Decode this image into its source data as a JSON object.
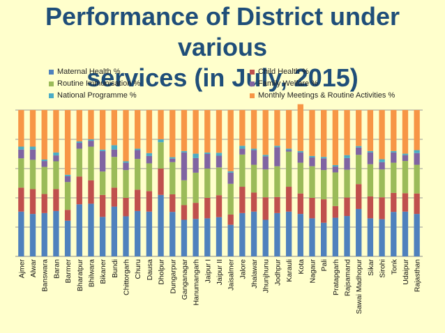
{
  "chart_data": {
    "type": "bar",
    "stacked": true,
    "title": "Performance of District under various services (in July, 2015)",
    "title_lines": [
      "Performance of District under various",
      "services (in July, 2015)"
    ],
    "xlabel": "",
    "ylabel": "",
    "ylim": [
      0,
      500
    ],
    "grid": true,
    "legend_position": "top",
    "categories": [
      "Ajmer",
      "Alwar",
      "Banswara",
      "Baran",
      "Barmer",
      "Bharatpur",
      "Bhilwara",
      "Bikaner",
      "Bundi",
      "Chittorgarh",
      "Churu",
      "Dausa",
      "Dholpur",
      "Dungarpur",
      "Ganganagar",
      "Hanumangarh",
      "Jaipur I",
      "Jaipur II",
      "Jaisalmer",
      "Jalore",
      "Jhalawar",
      "Jhunjhunu",
      "Jodhpur",
      "Karauli",
      "Kota",
      "Nagaur",
      "Pali",
      "Pratapgarh",
      "Rajsamand",
      "Sawai Madhopur",
      "Sikar",
      "Sirohi",
      "Tonk",
      "Udaipur",
      "Rajasthan"
    ],
    "series": [
      {
        "name": "Maternal Health %",
        "color": "#4f81bd",
        "values": [
          153,
          145,
          148,
          155,
          122,
          178,
          180,
          135,
          170,
          137,
          155,
          153,
          210,
          152,
          125,
          128,
          130,
          134,
          108,
          148,
          153,
          125,
          148,
          153,
          145,
          130,
          115,
          132,
          138,
          162,
          130,
          127,
          152,
          153,
          145
        ]
      },
      {
        "name": "Child Health %",
        "color": "#c0504d",
        "values": [
          82,
          85,
          65,
          75,
          37,
          95,
          80,
          75,
          65,
          63,
          73,
          70,
          90,
          60,
          50,
          55,
          70,
          75,
          35,
          90,
          65,
          77,
          55,
          85,
          70,
          70,
          80,
          40,
          63,
          85,
          75,
          75,
          65,
          63,
          70
        ]
      },
      {
        "name": "Routine Immunisation %",
        "color": "#9bbb59",
        "values": [
          100,
          100,
          93,
          95,
          95,
          95,
          115,
          80,
          105,
          95,
          105,
          95,
          90,
          110,
          85,
          103,
          100,
          95,
          105,
          110,
          95,
          95,
          105,
          120,
          105,
          108,
          100,
          115,
          95,
          100,
          110,
          95,
          103,
          110,
          98
        ]
      },
      {
        "name": "Family Welfare %",
        "color": "#8064a2",
        "values": [
          30,
          35,
          20,
          20,
          20,
          20,
          20,
          70,
          25,
          25,
          30,
          25,
          0,
          12,
          95,
          50,
          50,
          40,
          38,
          20,
          50,
          45,
          65,
          5,
          35,
          30,
          40,
          20,
          40,
          25,
          40,
          25,
          35,
          20,
          40
        ]
      },
      {
        "name": "National Programme %",
        "color": "#4bacc6",
        "values": [
          10,
          10,
          5,
          10,
          5,
          5,
          5,
          5,
          15,
          5,
          5,
          10,
          10,
          5,
          5,
          15,
          5,
          10,
          5,
          10,
          5,
          5,
          5,
          5,
          5,
          5,
          5,
          5,
          10,
          5,
          5,
          10,
          5,
          5,
          10
        ]
      },
      {
        "name": "Monthly Meetings & Routine Activities %",
        "color": "#f79646",
        "values": [
          125,
          125,
          169,
          145,
          221,
          107,
          100,
          135,
          120,
          175,
          132,
          147,
          100,
          161,
          140,
          149,
          145,
          146,
          209,
          122,
          132,
          153,
          122,
          132,
          160,
          157,
          160,
          188,
          154,
          123,
          140,
          168,
          140,
          149,
          137
        ]
      }
    ]
  }
}
